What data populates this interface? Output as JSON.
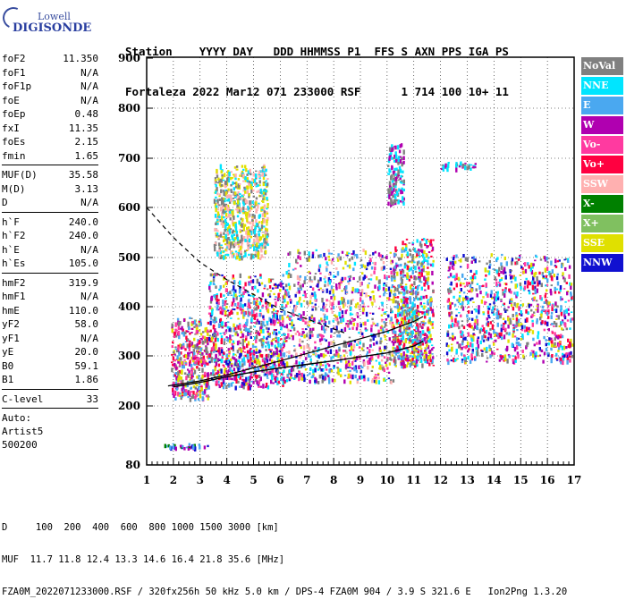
{
  "logo": {
    "brand": "Lowell",
    "model": "DIGISONDE"
  },
  "header": {
    "line1": "Station    YYYY DAY   DDD HHMMSS P1  FFS S AXN PPS IGA PS",
    "line2": "Fortaleza 2022 Mar12 071 233000 RSF      1 714 100 10+ 11"
  },
  "params": {
    "group1": [
      {
        "name": "foF2",
        "value": "11.350"
      },
      {
        "name": "foF1",
        "value": "N/A"
      },
      {
        "name": "foF1p",
        "value": "N/A"
      },
      {
        "name": "foE",
        "value": "N/A"
      },
      {
        "name": "foEp",
        "value": "0.48"
      },
      {
        "name": "fxI",
        "value": "11.35"
      },
      {
        "name": "foEs",
        "value": "2.15"
      },
      {
        "name": "fmin",
        "value": "1.65"
      }
    ],
    "group2": [
      {
        "name": "MUF(D)",
        "value": "35.58"
      },
      {
        "name": "M(D)",
        "value": "3.13"
      },
      {
        "name": "D",
        "value": "N/A"
      }
    ],
    "group3": [
      {
        "name": "h`F",
        "value": "240.0"
      },
      {
        "name": "h`F2",
        "value": "240.0"
      },
      {
        "name": "h`E",
        "value": "N/A"
      },
      {
        "name": "h`Es",
        "value": "105.0"
      }
    ],
    "group4": [
      {
        "name": "hmF2",
        "value": "319.9"
      },
      {
        "name": "hmF1",
        "value": "N/A"
      },
      {
        "name": "hmE",
        "value": "110.0"
      },
      {
        "name": "yF2",
        "value": "58.0"
      },
      {
        "name": "yF1",
        "value": "N/A"
      },
      {
        "name": "yE",
        "value": "20.0"
      },
      {
        "name": "B0",
        "value": "59.1"
      },
      {
        "name": "B1",
        "value": "1.86"
      }
    ],
    "clevel": {
      "name": "C-level",
      "value": "33"
    },
    "auto": [
      "Auto:",
      "Artist5",
      "500200"
    ]
  },
  "legend": [
    {
      "label": "NoVal",
      "color": "#808080",
      "text": "#ffffff"
    },
    {
      "label": "NNE",
      "color": "#00e5ff",
      "text": "#ffffff"
    },
    {
      "label": "E",
      "color": "#4aa8f0",
      "text": "#ffffff"
    },
    {
      "label": "W",
      "color": "#b000b0",
      "text": "#ffffff"
    },
    {
      "label": "Vo-",
      "color": "#ff3aa0",
      "text": "#ffffff"
    },
    {
      "label": "Vo+",
      "color": "#ff0040",
      "text": "#ffffff"
    },
    {
      "label": "SSW",
      "color": "#ffb0b0",
      "text": "#ffffff"
    },
    {
      "label": "X-",
      "color": "#008000",
      "text": "#ffffff"
    },
    {
      "label": "X+",
      "color": "#80c060",
      "text": "#ffffff"
    },
    {
      "label": "SSE",
      "color": "#e0e000",
      "text": "#ffffff"
    },
    {
      "label": "NNW",
      "color": "#1010d0",
      "text": "#ffffff"
    }
  ],
  "footer": {
    "line1": "D     100  200  400  600  800 1000 1500 3000 [km]",
    "line2": "MUF  11.7 11.8 12.4 13.3 14.6 16.4 21.8 35.6 [MHz]",
    "line3": "FZA0M_2022071233000.RSF / 320fx256h 50 kHz 5.0 km / DPS-4 FZA0M 904 / 3.9 S 321.6 E   Ion2Png 1.3.20"
  },
  "chart_data": {
    "type": "scatter",
    "xlim": [
      1,
      17
    ],
    "ylim": [
      80,
      900
    ],
    "x_ticks": [
      "1",
      "2",
      "3",
      "4",
      "5",
      "6",
      "7",
      "8",
      "9",
      "10",
      "11",
      "12",
      "13",
      "14",
      "15",
      "16",
      "17"
    ],
    "y_ticks": [
      "80",
      "200",
      "300",
      "400",
      "500",
      "600",
      "700",
      "800",
      "900"
    ],
    "y_tick_values": [
      80,
      200,
      300,
      400,
      500,
      600,
      700,
      800,
      900
    ],
    "grid": true,
    "clusters": [
      {
        "name": "Es trace",
        "x": [
          1.5,
          3.3
        ],
        "y": [
          116,
          126
        ],
        "colors": [
          "#b000b0",
          "#008000",
          "#4aa8f0",
          "#1010d0"
        ]
      },
      {
        "name": "spread F",
        "x": [
          1.9,
          3.3
        ],
        "y": [
          215,
          380
        ],
        "colors": [
          "#b000b0",
          "#ff3aa0",
          "#ff0040",
          "#e0e000",
          "#4aa8f0",
          "#808080"
        ]
      },
      {
        "name": "spread F",
        "x": [
          3.3,
          6.2
        ],
        "y": [
          240,
          470
        ],
        "colors": [
          "#b000b0",
          "#ff3aa0",
          "#ff0040",
          "#e0e000",
          "#4aa8f0",
          "#00e5ff",
          "#1010d0",
          "#808080"
        ]
      },
      {
        "name": "spread F",
        "x": [
          6.2,
          10.2
        ],
        "y": [
          250,
          520
        ],
        "colors": [
          "#b000b0",
          "#ff3aa0",
          "#e0e000",
          "#ffb0b0",
          "#00e5ff",
          "#4aa8f0",
          "#1010d0",
          "#808080"
        ]
      },
      {
        "name": "spread F",
        "x": [
          10.2,
          11.7
        ],
        "y": [
          280,
          540
        ],
        "colors": [
          "#00e5ff",
          "#4aa8f0",
          "#e0e000",
          "#b000b0",
          "#ff0040",
          "#808080"
        ]
      },
      {
        "name": "spread F",
        "x": [
          12.2,
          16.9
        ],
        "y": [
          290,
          510
        ],
        "colors": [
          "#b000b0",
          "#ff3aa0",
          "#ff0040",
          "#00e5ff",
          "#1010d0",
          "#e0e000",
          "#4aa8f0",
          "#808080"
        ]
      },
      {
        "name": "multi-hop",
        "x": [
          3.5,
          5.5
        ],
        "y": [
          500,
          690
        ],
        "colors": [
          "#e0e000",
          "#ffb0b0",
          "#808080",
          "#00e5ff"
        ]
      },
      {
        "name": "multi-hop",
        "x": [
          10.0,
          10.6
        ],
        "y": [
          610,
          730
        ],
        "colors": [
          "#b000b0",
          "#00e5ff",
          "#808080"
        ]
      },
      {
        "name": "multi-hop",
        "x": [
          12.0,
          13.3
        ],
        "y": [
          680,
          695
        ],
        "colors": [
          "#00e5ff",
          "#b000b0",
          "#808080"
        ]
      }
    ],
    "profile_line": {
      "x": [
        2.0,
        3.0,
        4.0,
        5.0,
        6.0,
        7.0,
        8.0,
        9.0,
        10.0,
        11.0,
        11.35
      ],
      "y": [
        238,
        247,
        258,
        268,
        276,
        283,
        290,
        298,
        306,
        320,
        330
      ]
    },
    "trace_line": {
      "x": [
        1.8,
        3.0,
        4.0,
        5.0,
        6.0,
        7.0,
        8.0,
        9.0,
        10.0,
        11.0,
        11.35
      ],
      "y": [
        240,
        250,
        262,
        276,
        290,
        305,
        320,
        335,
        350,
        370,
        380
      ]
    },
    "muf_curve": {
      "x": [
        1.0,
        1.5,
        2.0,
        2.5,
        3.0,
        4.0,
        5.0,
        6.0,
        7.0,
        8.0,
        8.5
      ],
      "y": [
        600,
        570,
        540,
        515,
        490,
        455,
        425,
        395,
        375,
        355,
        345
      ]
    }
  }
}
